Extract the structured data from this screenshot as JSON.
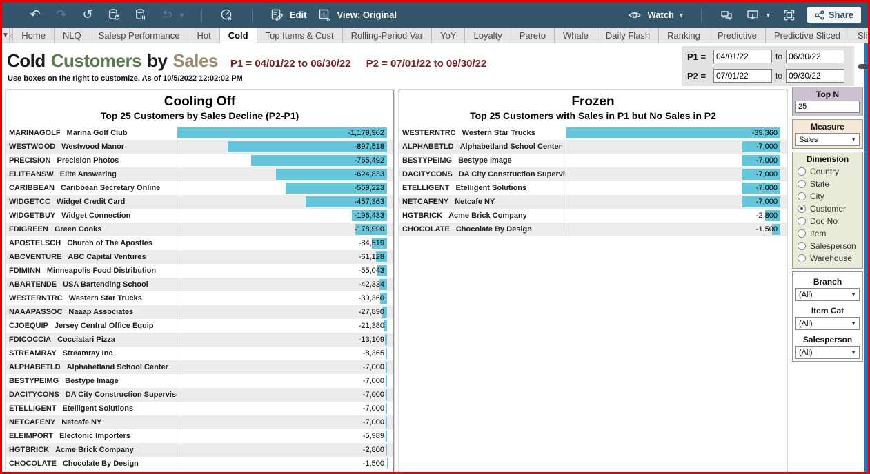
{
  "toolbar": {
    "edit": "Edit",
    "view": "View: Original",
    "watch": "Watch",
    "share": "Share"
  },
  "tabbar": {
    "tabs": [
      "Home",
      "NLQ",
      "Salesp Performance",
      "Hot",
      "Cold",
      "Top Items & Cust",
      "Rolling-Period Var",
      "YoY",
      "Loyalty",
      "Pareto",
      "Whale",
      "Daily Flash",
      "Ranking",
      "Predictive",
      "Predictive Sliced",
      "Sli"
    ],
    "active_tab": "Cold"
  },
  "header": {
    "title_cold": "Cold",
    "title_customers": "Customers",
    "title_by": "by",
    "title_sales": "Sales",
    "period1": "P1 = 04/01/22 to 06/30/22",
    "period2": "P2 = 07/01/22 to 09/30/22",
    "subtitle": "Use boxes on the right to customize.  As of 10/5/2022 12:02:02 PM"
  },
  "period_box": {
    "p1_label": "P1 =",
    "p1_start": "04/01/22",
    "p1_to": "to",
    "p1_end": "06/30/22",
    "p2_label": "P2 =",
    "p2_start": "07/01/22",
    "p2_to": "to",
    "p2_end": "09/30/22"
  },
  "sidebar": {
    "topn_label": "Top N",
    "topn_value": "25",
    "measure_label": "Measure",
    "measure_value": "Sales",
    "dimension_label": "Dimension",
    "dimension_options": [
      "Country",
      "State",
      "City",
      "Customer",
      "Doc No",
      "Item",
      "Salesperson",
      "Warehouse"
    ],
    "dimension_selected": "Customer",
    "filters": [
      {
        "label": "Branch",
        "value": "(All)"
      },
      {
        "label": "Item Cat",
        "value": "(All)"
      },
      {
        "label": "Salesperson",
        "value": "(All)"
      }
    ]
  },
  "colors": {
    "toolbar_bg": "#33566b",
    "bar_teal": "#63c6da",
    "title_green": "#567c4b",
    "title_tan": "#9c8a68",
    "period_maroon": "#7a2020"
  },
  "chart_data": [
    {
      "type": "bar",
      "orientation": "horizontal",
      "title": "Cooling Off",
      "subtitle": "Top 25 Customers by Sales Decline (P2-P1)",
      "bar_color": "#63c6da",
      "xlim": [
        -1179902,
        0
      ],
      "rows": [
        {
          "code": "MARINAGOLF",
          "name": "Marina Golf Club",
          "value": -1179902,
          "display": "-1,179,902"
        },
        {
          "code": "WESTWOOD",
          "name": "Westwood Manor",
          "value": -897518,
          "display": "-897,518"
        },
        {
          "code": "PRECISION",
          "name": "Precision Photos",
          "value": -765492,
          "display": "-765,492"
        },
        {
          "code": "ELITEANSW",
          "name": "Elite Answering",
          "value": -624833,
          "display": "-624,833"
        },
        {
          "code": "CARIBBEAN",
          "name": "Caribbean Secretary Online",
          "value": -569223,
          "display": "-569,223"
        },
        {
          "code": "WIDGETCC",
          "name": "Widget Credit Card",
          "value": -457363,
          "display": "-457,363"
        },
        {
          "code": "WIDGETBUY",
          "name": "Widget Connection",
          "value": -196433,
          "display": "-196,433"
        },
        {
          "code": "FDIGREEN",
          "name": "Green Cooks",
          "value": -178990,
          "display": "-178,990"
        },
        {
          "code": "APOSTELSCH",
          "name": "Church of The Apostles",
          "value": -84519,
          "display": "-84,519"
        },
        {
          "code": "ABCVENTURE",
          "name": "ABC Capital Ventures",
          "value": -61128,
          "display": "-61,128"
        },
        {
          "code": "FDIMINN",
          "name": "Minneapolis Food Distribution",
          "value": -55043,
          "display": "-55,043"
        },
        {
          "code": "ABARTENDE",
          "name": "USA Bartending School",
          "value": -42334,
          "display": "-42,334"
        },
        {
          "code": "WESTERNTRC",
          "name": "Western Star Trucks",
          "value": -39360,
          "display": "-39,360"
        },
        {
          "code": "NAAAPASSOC",
          "name": "Naaap Associates",
          "value": -27890,
          "display": "-27,890"
        },
        {
          "code": "CJOEQUIP",
          "name": "Jersey Central Office Equip",
          "value": -21380,
          "display": "-21,380"
        },
        {
          "code": "FDICOCCIA",
          "name": "Cocciatari Pizza",
          "value": -13109,
          "display": "-13,109"
        },
        {
          "code": "STREAMRAY",
          "name": "Streamray Inc",
          "value": -8365,
          "display": "-8,365"
        },
        {
          "code": "ALPHABETLD",
          "name": "Alphabetland School Center",
          "value": -7000,
          "display": "-7,000"
        },
        {
          "code": "BESTYPEIMG",
          "name": "Bestype Image",
          "value": -7000,
          "display": "-7,000"
        },
        {
          "code": "DACITYCONS",
          "name": "DA City Construction Superviso..",
          "value": -7000,
          "display": "-7,000"
        },
        {
          "code": "ETELLIGENT",
          "name": "Etelligent Solutions",
          "value": -7000,
          "display": "-7,000"
        },
        {
          "code": "NETCAFENY",
          "name": "Netcafe NY",
          "value": -7000,
          "display": "-7,000"
        },
        {
          "code": "ELEIMPORT",
          "name": "Electonic Importers",
          "value": -5989,
          "display": "-5,989"
        },
        {
          "code": "HGTBRICK",
          "name": "Acme Brick Company",
          "value": -2800,
          "display": "-2,800"
        },
        {
          "code": "CHOCOLATE",
          "name": "Chocolate By Design",
          "value": -1500,
          "display": "-1,500"
        }
      ]
    },
    {
      "type": "bar",
      "orientation": "horizontal",
      "title": "Frozen",
      "subtitle": "Top 25 Customers with Sales in P1 but No Sales in P2",
      "bar_color": "#63c6da",
      "xlim": [
        -39360,
        0
      ],
      "rows": [
        {
          "code": "WESTERNTRC",
          "name": "Western Star Trucks",
          "value": -39360,
          "display": "-39,360"
        },
        {
          "code": "ALPHABETLD",
          "name": "Alphabetland School Center",
          "value": -7000,
          "display": "-7,000"
        },
        {
          "code": "BESTYPEIMG",
          "name": "Bestype Image",
          "value": -7000,
          "display": "-7,000"
        },
        {
          "code": "DACITYCONS",
          "name": "DA City Construction Supervi..",
          "value": -7000,
          "display": "-7,000"
        },
        {
          "code": "ETELLIGENT",
          "name": "Etelligent Solutions",
          "value": -7000,
          "display": "-7,000"
        },
        {
          "code": "NETCAFENY",
          "name": "Netcafe NY",
          "value": -7000,
          "display": "-7,000"
        },
        {
          "code": "HGTBRICK",
          "name": "Acme Brick Company",
          "value": -2800,
          "display": "-2,800"
        },
        {
          "code": "CHOCOLATE",
          "name": "Chocolate By Design",
          "value": -1500,
          "display": "-1,500"
        }
      ]
    }
  ]
}
